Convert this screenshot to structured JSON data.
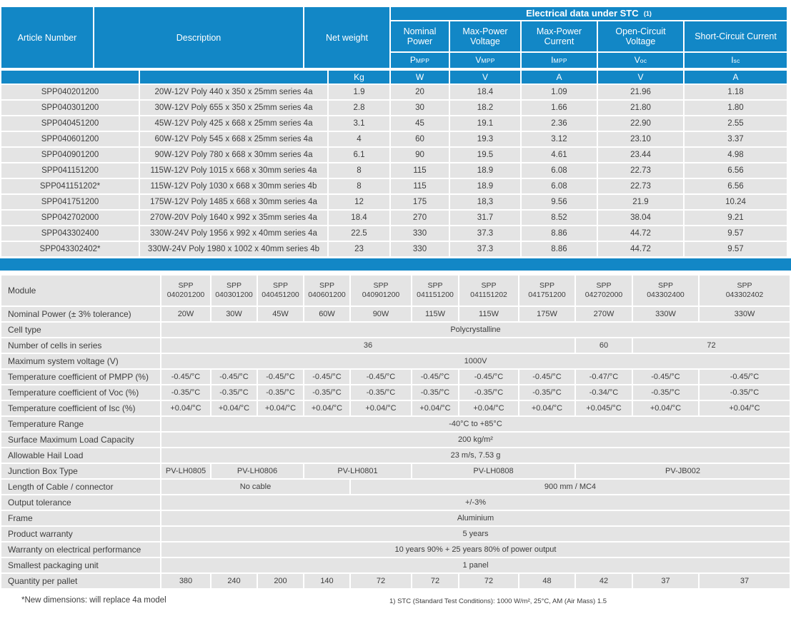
{
  "colors": {
    "accent_blue": "#1287c6",
    "row_gray": "#e4e4e4",
    "text": "#3d3d3d"
  },
  "top_table": {
    "headers": {
      "article": "Article Number",
      "description": "Description",
      "net_weight": "Net weight",
      "weight_unit": "Kg",
      "stc_banner": "Electrical data under STC",
      "stc_note": "(1)",
      "electrical": [
        {
          "label": "Nominal Power",
          "symbol_base": "P",
          "symbol_sub": "MPP",
          "unit": "W"
        },
        {
          "label": "Max-Power Voltage",
          "symbol_base": "V",
          "symbol_sub": "MPP",
          "unit": "V"
        },
        {
          "label": "Max-Power Current",
          "symbol_base": "I",
          "symbol_sub": "MPP",
          "unit": "A"
        },
        {
          "label": "Open-Circuit Voltage",
          "symbol_base": "V",
          "symbol_sub": "oc",
          "unit": "V"
        },
        {
          "label": "Short-Circuit Current",
          "symbol_base": "I",
          "symbol_sub": "sc",
          "unit": "A"
        }
      ]
    },
    "rows": [
      [
        "SPP040201200",
        "20W-12V Poly 440 x 350 x 25mm series 4a",
        "1.9",
        "20",
        "18.4",
        "1.09",
        "21.96",
        "1.18"
      ],
      [
        "SPP040301200",
        "30W-12V Poly 655 x 350 x 25mm series 4a",
        "2.8",
        "30",
        "18.2",
        "1.66",
        "21.80",
        "1.80"
      ],
      [
        "SPP040451200",
        "45W-12V Poly 425 x 668 x 25mm series 4a",
        "3.1",
        "45",
        "19.1",
        "2.36",
        "22.90",
        "2.55"
      ],
      [
        "SPP040601200",
        "60W-12V Poly 545 x 668 x 25mm series 4a",
        "4",
        "60",
        "19.3",
        "3.12",
        "23.10",
        "3.37"
      ],
      [
        "SPP040901200",
        "90W-12V Poly 780 x 668 x 30mm series 4a",
        "6.1",
        "90",
        "19.5",
        "4.61",
        "23.44",
        "4.98"
      ],
      [
        "SPP041151200",
        "115W-12V Poly 1015 x 668 x 30mm series 4a",
        "8",
        "115",
        "18.9",
        "6.08",
        "22.73",
        "6.56"
      ],
      [
        "SPP041151202*",
        "115W-12V Poly 1030 x 668 x 30mm series 4b",
        "8",
        "115",
        "18.9",
        "6.08",
        "22.73",
        "6.56"
      ],
      [
        "SPP041751200",
        "175W-12V Poly 1485 x 668 x 30mm series 4a",
        "12",
        "175",
        "18,3",
        "9.56",
        "21.9",
        "10.24"
      ],
      [
        "SPP042702000",
        "270W-20V Poly 1640 x 992 x 35mm series 4a",
        "18.4",
        "270",
        "31.7",
        "8.52",
        "38.04",
        "9.21"
      ],
      [
        "SPP043302400",
        "330W-24V Poly 1956 x 992 x 40mm series 4a",
        "22.5",
        "330",
        "37.3",
        "8.86",
        "44.72",
        "9.57"
      ],
      [
        "SPP043302402*",
        "330W-24V Poly 1980 x 1002 x 40mm series 4b",
        "23",
        "330",
        "37.3",
        "8.86",
        "44.72",
        "9.57"
      ]
    ]
  },
  "spec_table": {
    "module_label": "Module",
    "modules": [
      {
        "prefix": "SPP",
        "code": "040201200"
      },
      {
        "prefix": "SPP",
        "code": "040301200"
      },
      {
        "prefix": "SPP",
        "code": "040451200"
      },
      {
        "prefix": "SPP",
        "code": "040601200"
      },
      {
        "prefix": "SPP",
        "code": "040901200"
      },
      {
        "prefix": "SPP",
        "code": "041151200"
      },
      {
        "prefix": "SPP",
        "code": "041151202"
      },
      {
        "prefix": "SPP",
        "code": "041751200"
      },
      {
        "prefix": "SPP",
        "code": "042702000"
      },
      {
        "prefix": "SPP",
        "code": "043302400"
      },
      {
        "prefix": "SPP",
        "code": "043302402"
      }
    ],
    "rows": [
      {
        "label": "Nominal Power  (± 3% tolerance)",
        "cells": [
          {
            "text": "20W",
            "span": 1
          },
          {
            "text": "30W",
            "span": 1
          },
          {
            "text": "45W",
            "span": 1
          },
          {
            "text": "60W",
            "span": 1
          },
          {
            "text": "90W",
            "span": 1
          },
          {
            "text": "115W",
            "span": 1
          },
          {
            "text": "115W",
            "span": 1
          },
          {
            "text": "175W",
            "span": 1
          },
          {
            "text": "270W",
            "span": 1
          },
          {
            "text": "330W",
            "span": 1
          },
          {
            "text": "330W",
            "span": 1
          }
        ]
      },
      {
        "label": "Cell type",
        "cells": [
          {
            "text": "Polycrystalline",
            "span": 11
          }
        ]
      },
      {
        "label": "Number of cells in series",
        "cells": [
          {
            "text": "36",
            "span": 8
          },
          {
            "text": "60",
            "span": 1
          },
          {
            "text": "72",
            "span": 2
          }
        ]
      },
      {
        "label": "Maximum system voltage (V)",
        "cells": [
          {
            "text": "1000V",
            "span": 11
          }
        ]
      },
      {
        "label": "Temperature coefficient of PMPP (%)",
        "cells": [
          {
            "text": "-0.45/°C",
            "span": 1
          },
          {
            "text": "-0.45/°C",
            "span": 1
          },
          {
            "text": "-0.45/°C",
            "span": 1
          },
          {
            "text": "-0.45/°C",
            "span": 1
          },
          {
            "text": "-0.45/°C",
            "span": 1
          },
          {
            "text": "-0.45/°C",
            "span": 1
          },
          {
            "text": "-0.45/°C",
            "span": 1
          },
          {
            "text": "-0.45/°C",
            "span": 1
          },
          {
            "text": "-0.47/°C",
            "span": 1
          },
          {
            "text": "-0.45/°C",
            "span": 1
          },
          {
            "text": "-0.45/°C",
            "span": 1
          }
        ]
      },
      {
        "label": "Temperature coefficient of Voc (%)",
        "cells": [
          {
            "text": "-0.35/°C",
            "span": 1
          },
          {
            "text": "-0.35/°C",
            "span": 1
          },
          {
            "text": "-0.35/°C",
            "span": 1
          },
          {
            "text": "-0.35/°C",
            "span": 1
          },
          {
            "text": "-0.35/°C",
            "span": 1
          },
          {
            "text": "-0.35/°C",
            "span": 1
          },
          {
            "text": "-0.35/°C",
            "span": 1
          },
          {
            "text": "-0.35/°C",
            "span": 1
          },
          {
            "text": "-0.34/°C",
            "span": 1
          },
          {
            "text": "-0.35/°C",
            "span": 1
          },
          {
            "text": "-0.35/°C",
            "span": 1
          }
        ]
      },
      {
        "label": "Temperature coefficient of Isc (%)",
        "cells": [
          {
            "text": "+0.04/°C",
            "span": 1
          },
          {
            "text": "+0.04/°C",
            "span": 1
          },
          {
            "text": "+0.04/°C",
            "span": 1
          },
          {
            "text": "+0.04/°C",
            "span": 1
          },
          {
            "text": "+0.04/°C",
            "span": 1
          },
          {
            "text": "+0.04/°C",
            "span": 1
          },
          {
            "text": "+0.04/°C",
            "span": 1
          },
          {
            "text": "+0.04/°C",
            "span": 1
          },
          {
            "text": "+0.045/°C",
            "span": 1
          },
          {
            "text": "+0.04/°C",
            "span": 1
          },
          {
            "text": "+0.04/°C",
            "span": 1
          }
        ]
      },
      {
        "label": "Temperature Range",
        "cells": [
          {
            "text": "-40°C to +85°C",
            "span": 11
          }
        ]
      },
      {
        "label": "Surface Maximum Load Capacity",
        "cells": [
          {
            "text": "200 kg/m²",
            "span": 11
          }
        ]
      },
      {
        "label": "Allowable Hail Load",
        "cells": [
          {
            "text": "23 m/s, 7.53 g",
            "span": 11
          }
        ]
      },
      {
        "label": "Junction Box Type",
        "cells": [
          {
            "text": "PV-LH0805",
            "span": 1
          },
          {
            "text": "PV-LH0806",
            "span": 2
          },
          {
            "text": "PV-LH0801",
            "span": 2
          },
          {
            "text": "PV-LH0808",
            "span": 3
          },
          {
            "text": "PV-JB002",
            "span": 3
          }
        ]
      },
      {
        "label": "Length of Cable / connector",
        "cells": [
          {
            "text": "No cable",
            "span": 4
          },
          {
            "text": "900 mm / MC4",
            "span": 7
          }
        ]
      },
      {
        "label": "Output tolerance",
        "cells": [
          {
            "text": "+/-3%",
            "span": 11
          }
        ]
      },
      {
        "label": "Frame",
        "cells": [
          {
            "text": "Aluminium",
            "span": 11
          }
        ]
      },
      {
        "label": "Product warranty",
        "cells": [
          {
            "text": "5 years",
            "span": 11
          }
        ]
      },
      {
        "label": "Warranty on electrical performance",
        "cells": [
          {
            "text": "10 years 90% + 25 years 80% of power output",
            "span": 11
          }
        ]
      },
      {
        "label": "Smallest packaging unit",
        "cells": [
          {
            "text": "1 panel",
            "span": 11
          }
        ]
      },
      {
        "label": "Quantity per pallet",
        "cells": [
          {
            "text": "380",
            "span": 1
          },
          {
            "text": "240",
            "span": 1
          },
          {
            "text": "200",
            "span": 1
          },
          {
            "text": "140",
            "span": 1
          },
          {
            "text": "72",
            "span": 1
          },
          {
            "text": "72",
            "span": 1
          },
          {
            "text": "72",
            "span": 1
          },
          {
            "text": "48",
            "span": 1
          },
          {
            "text": "42",
            "span": 1
          },
          {
            "text": "37",
            "span": 1
          },
          {
            "text": "37",
            "span": 1
          }
        ]
      }
    ]
  },
  "footer": {
    "note_left": "*New dimensions: will replace 4a model",
    "note_right": "1) STC (Standard Test Conditions): 1000 W/m², 25°C, AM (Air Mass) 1.5"
  }
}
